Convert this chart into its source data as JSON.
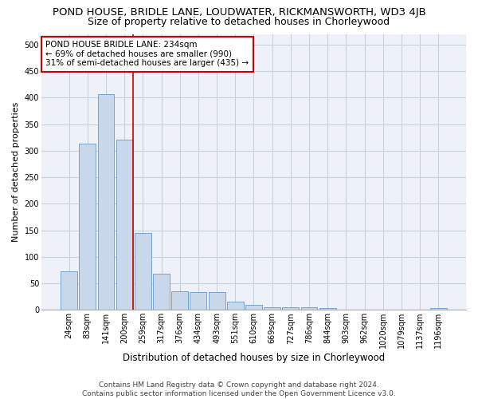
{
  "title1": "POND HOUSE, BRIDLE LANE, LOUDWATER, RICKMANSWORTH, WD3 4JB",
  "title2": "Size of property relative to detached houses in Chorleywood",
  "xlabel": "Distribution of detached houses by size in Chorleywood",
  "ylabel": "Number of detached properties",
  "footer1": "Contains HM Land Registry data © Crown copyright and database right 2024.",
  "footer2": "Contains public sector information licensed under the Open Government Licence v3.0.",
  "categories": [
    "24sqm",
    "83sqm",
    "141sqm",
    "200sqm",
    "259sqm",
    "317sqm",
    "376sqm",
    "434sqm",
    "493sqm",
    "551sqm",
    "610sqm",
    "669sqm",
    "727sqm",
    "786sqm",
    "844sqm",
    "903sqm",
    "962sqm",
    "1020sqm",
    "1079sqm",
    "1137sqm",
    "1196sqm"
  ],
  "values": [
    72,
    313,
    406,
    320,
    145,
    68,
    35,
    34,
    34,
    16,
    10,
    5,
    5,
    5,
    3,
    0,
    0,
    0,
    0,
    0,
    3
  ],
  "bar_color": "#c8d8ea",
  "bar_edge_color": "#6699cc",
  "vline_x_index": 3,
  "vline_color": "#cc0000",
  "annotation_line1": "POND HOUSE BRIDLE LANE: 234sqm",
  "annotation_line2": "← 69% of detached houses are smaller (990)",
  "annotation_line3": "31% of semi-detached houses are larger (435) →",
  "annotation_box_color": "#ffffff",
  "annotation_box_edge_color": "#cc0000",
  "ylim": [
    0,
    520
  ],
  "yticks": [
    0,
    50,
    100,
    150,
    200,
    250,
    300,
    350,
    400,
    450,
    500
  ],
  "grid_color": "#c8d0dc",
  "bg_color": "#eef2f8",
  "title1_fontsize": 9.5,
  "title2_fontsize": 9,
  "xlabel_fontsize": 8.5,
  "ylabel_fontsize": 8,
  "tick_fontsize": 7,
  "annotation_fontsize": 7.5,
  "footer_fontsize": 6.5
}
